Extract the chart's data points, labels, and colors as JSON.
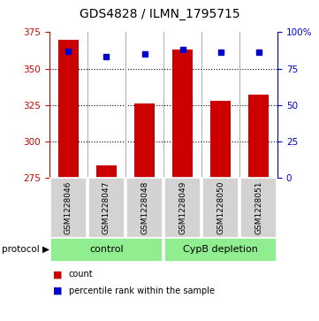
{
  "title": "GDS4828 / ILMN_1795715",
  "samples": [
    "GSM1228046",
    "GSM1228047",
    "GSM1228048",
    "GSM1228049",
    "GSM1228050",
    "GSM1228051"
  ],
  "counts": [
    370,
    284,
    326,
    363,
    328,
    332
  ],
  "percentiles": [
    87,
    83,
    85,
    88,
    86,
    86
  ],
  "ylim_left": [
    275,
    375
  ],
  "ylim_right": [
    0,
    100
  ],
  "yticks_left": [
    275,
    300,
    325,
    350,
    375
  ],
  "yticks_right": [
    0,
    25,
    50,
    75,
    100
  ],
  "ytick_labels_right": [
    "0",
    "25",
    "50",
    "75",
    "100%"
  ],
  "bar_color": "#cc0000",
  "dot_color": "#0000cc",
  "bar_bottom": 275,
  "groups": [
    {
      "label": "control",
      "samples": [
        0,
        1,
        2
      ]
    },
    {
      "label": "CypB depletion",
      "samples": [
        3,
        4,
        5
      ]
    }
  ],
  "group_color": "#90ee90",
  "sample_box_color": "#d3d3d3",
  "protocol_label": "protocol",
  "legend_count_label": "count",
  "legend_pct_label": "percentile rank within the sample",
  "background_color": "#ffffff",
  "title_fontsize": 10,
  "tick_fontsize": 7.5,
  "label_fontsize": 7.5
}
